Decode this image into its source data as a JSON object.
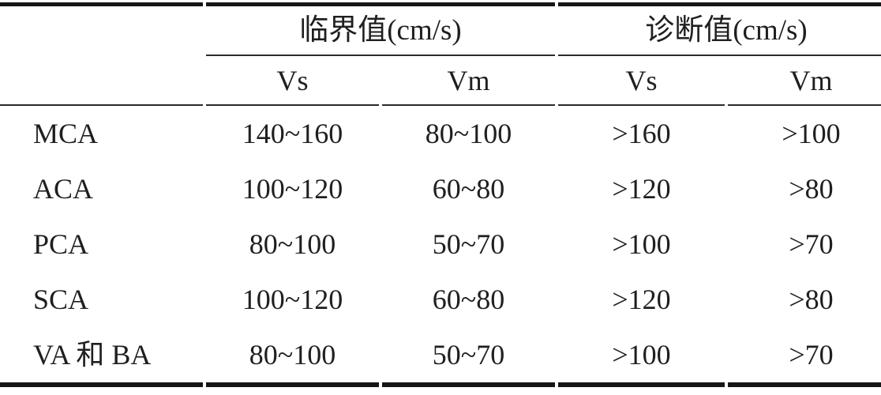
{
  "table": {
    "group_headers": [
      {
        "label": "临界值(cm/s)"
      },
      {
        "label": "诊断值(cm/s)"
      }
    ],
    "sub_headers": [
      "Vs",
      "Vm",
      "Vs",
      "Vm"
    ],
    "rows": [
      {
        "name": "MCA",
        "values": [
          "140~160",
          "80~100",
          ">160",
          ">100"
        ]
      },
      {
        "name": "ACA",
        "values": [
          "100~120",
          "60~80",
          ">120",
          ">80"
        ]
      },
      {
        "name": "PCA",
        "values": [
          "80~100",
          "50~70",
          ">100",
          ">70"
        ]
      },
      {
        "name": "SCA",
        "values": [
          "100~120",
          "60~80",
          ">120",
          ">80"
        ]
      },
      {
        "name": "VA 和 BA",
        "values": [
          "80~100",
          "50~70",
          ">100",
          ">70"
        ]
      }
    ]
  },
  "colors": {
    "text": "#1f1f1f",
    "rule_thick": "#161616",
    "rule_thin": "#2b2b2b",
    "background": "#ffffff"
  }
}
